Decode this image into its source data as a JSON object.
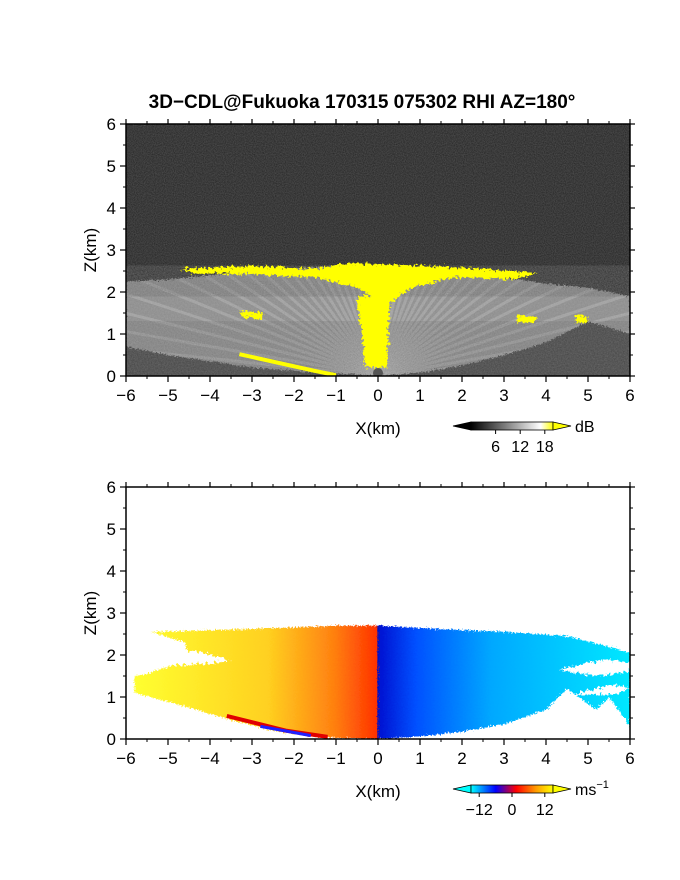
{
  "title": "3D−CDL@Fukuoka 170315 075302 RHI AZ=180°",
  "colors": {
    "frame": "#000000",
    "background_panel_top": "#202020",
    "highlight_yellow": "#ffff00",
    "velocity_negative": "#1030e0",
    "velocity_zero": "#ff4000",
    "velocity_positive": "#ffff40"
  },
  "chart_data": [
    {
      "type": "heatmap",
      "name": "backscatter-intensity",
      "xlabel": "X(km)",
      "ylabel": "Z(km)",
      "xlim": [
        -6,
        6
      ],
      "ylim": [
        0,
        6
      ],
      "xticks": [
        "−6",
        "−5",
        "−4",
        "−3",
        "−2",
        "−1",
        "0",
        "1",
        "2",
        "3",
        "4",
        "5",
        "6"
      ],
      "yticks": [
        "0",
        "1",
        "2",
        "3",
        "4",
        "5",
        "6"
      ],
      "colorbar": {
        "unit": "dB",
        "ticks": [
          "6",
          "12",
          "18"
        ],
        "range": [
          0,
          20
        ],
        "colors": [
          "#000000",
          "#ffffff",
          "#ffff00"
        ]
      },
      "features": {
        "cloud_top_km": 2.6,
        "echo_extent_km": [
          -6,
          6
        ],
        "radar_origin_x_km": 0
      }
    },
    {
      "type": "heatmap",
      "name": "doppler-velocity",
      "xlabel": "X(km)",
      "ylabel": "Z(km)",
      "xlim": [
        -6,
        6
      ],
      "ylim": [
        0,
        6
      ],
      "xticks": [
        "−6",
        "−5",
        "−4",
        "−3",
        "−2",
        "−1",
        "0",
        "1",
        "2",
        "3",
        "4",
        "5",
        "6"
      ],
      "yticks": [
        "0",
        "1",
        "2",
        "3",
        "4",
        "5",
        "6"
      ],
      "colorbar": {
        "unit": "ms−1",
        "unit_base": "ms",
        "unit_exp": "−1",
        "ticks": [
          "−12",
          "0",
          "12"
        ],
        "range": [
          -15,
          15
        ],
        "colors": [
          "#00ffff",
          "#0000ff",
          "#ff0000",
          "#ffa000",
          "#ffff00"
        ]
      },
      "features": {
        "echo_top_km": 2.7,
        "echo_extent_km": [
          -5.8,
          6
        ],
        "sign_change_x_km": 0
      }
    }
  ]
}
